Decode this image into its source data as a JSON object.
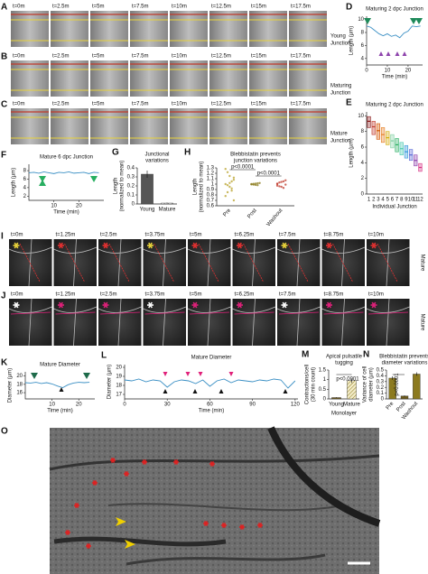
{
  "panels": {
    "A": {
      "label": "A",
      "times": [
        "t=0m",
        "t=2.5m",
        "t=5m",
        "t=7.5m",
        "t=10m",
        "t=12.5m",
        "t=15m",
        "t=17.5m"
      ],
      "caption": [
        "Young",
        "Junction"
      ]
    },
    "B": {
      "label": "B",
      "times": [
        "t=0m",
        "t=2.5m",
        "t=5m",
        "t=7.5m",
        "t=10m",
        "t=12.5m",
        "t=15m",
        "t=17.5m"
      ],
      "caption": [
        "Maturing",
        "Junction"
      ]
    },
    "C": {
      "label": "C",
      "times": [
        "t=0m",
        "t=2.5m",
        "t=5m",
        "t=7.5m",
        "t=10m",
        "t=12.5m",
        "t=15m",
        "t=17.5m"
      ],
      "caption": [
        "Mature",
        "Junction"
      ]
    },
    "I": {
      "label": "I",
      "times": [
        "t=0m",
        "t=1.25m",
        "t=2.5m",
        "t=3.75m",
        "t=5m",
        "t=6.25m",
        "t=7.5m",
        "t=8.75m",
        "t=10m"
      ],
      "side": "Mature"
    },
    "J": {
      "label": "J",
      "times": [
        "t=0m",
        "t=1.25m",
        "t=2.5m",
        "t=3.75m",
        "t=5m",
        "t=6.25m",
        "t=7.5m",
        "t=8.75m",
        "t=10m"
      ],
      "side": "Mature"
    },
    "O": {
      "label": "O"
    }
  },
  "chart_data": [
    {
      "type": "line",
      "label": "D",
      "title": [
        "Maturing 2 dpc Junction"
      ],
      "x_label": "Time (min)",
      "y_label": "Length (µm)",
      "color": "#3a8fc4",
      "x": [
        0,
        2,
        4,
        6,
        8,
        10,
        12,
        14,
        16,
        18,
        20,
        22,
        24,
        26
      ],
      "values": [
        9,
        8.8,
        8.3,
        7.8,
        7.5,
        7.8,
        7.4,
        7.6,
        7.2,
        7.9,
        8.2,
        9,
        8.9,
        9
      ],
      "xlim": [
        0,
        27
      ],
      "ylim": [
        3,
        10.5
      ],
      "xticks": [
        0,
        10,
        20
      ],
      "yticks": [
        4,
        6,
        8,
        10
      ]
    },
    {
      "type": "box",
      "label": "E",
      "title": [
        "Maturing 2 dpc Junction"
      ],
      "x_label": "Individual Junction",
      "y_label": "Length (µm)",
      "categories": [
        "1",
        "2",
        "3",
        "4",
        "5",
        "6",
        "7",
        "8",
        "9",
        "10",
        "11",
        "12"
      ],
      "values": [
        9.3,
        8.6,
        8.1,
        7.6,
        7.2,
        6.8,
        6.3,
        5.8,
        5.4,
        5.0,
        4.3,
        3.4
      ],
      "low": [
        8.5,
        7.6,
        7.0,
        6.6,
        6.3,
        5.9,
        5.4,
        5.0,
        4.6,
        4.3,
        3.6,
        2.9
      ],
      "high": [
        9.9,
        9.3,
        9.0,
        8.5,
        8.0,
        7.6,
        7.1,
        6.6,
        6.2,
        5.7,
        5.0,
        3.9
      ],
      "colors": [
        "#8b1a1a",
        "#c0392b",
        "#d35400",
        "#e67e22",
        "#d4ac0d",
        "#7dcea0",
        "#27ae60",
        "#48c9b0",
        "#3498db",
        "#5b6bd6",
        "#8e44ad",
        "#d63384"
      ],
      "ylim": [
        0,
        10.5
      ],
      "yticks": [
        0,
        2,
        4,
        6,
        8,
        10
      ]
    },
    {
      "type": "line",
      "label": "F",
      "title": [
        "Mature 6 dpc Junction"
      ],
      "x_label": "Time (min)",
      "y_label": "Length (µm)",
      "color": "#3a8fc4",
      "x": [
        0,
        2,
        4,
        6,
        8,
        10,
        12,
        14,
        16,
        18,
        20,
        22,
        24,
        26,
        28
      ],
      "values": [
        7.5,
        7.6,
        7.4,
        7.7,
        7.5,
        7.3,
        7.6,
        7.5,
        7.7,
        7.4,
        7.5,
        7.6,
        7.3,
        7.6,
        7.5
      ],
      "xlim": [
        0,
        30
      ],
      "ylim": [
        1,
        9.5
      ],
      "xticks": [
        10,
        20
      ],
      "yticks": [
        2,
        4,
        6,
        8
      ]
    },
    {
      "type": "bar",
      "label": "G",
      "title": [
        "Junctional",
        "variations"
      ],
      "y_label": [
        "Length",
        "(normalized to mean)"
      ],
      "categories": [
        "Young",
        "Mature"
      ],
      "values": [
        0.33,
        0.01
      ],
      "errors": [
        0.04,
        0.005
      ],
      "colors": [
        "#555555",
        "hatch-gray"
      ],
      "ylim": [
        0,
        0.4
      ],
      "yticks": [
        0,
        0.1,
        0.2,
        0.3,
        0.4
      ]
    },
    {
      "type": "strip",
      "label": "H",
      "title": [
        "Blebbistatin prevents",
        "junction variations"
      ],
      "y_label": [
        "Length",
        "(normalized to mean)"
      ],
      "categories": [
        "Pre",
        "Post",
        "Washout"
      ],
      "colors": [
        "#b8a22a",
        "#8a7a1a",
        "#c0392b"
      ],
      "points": [
        [
          1.0,
          0.85,
          1.15,
          0.92,
          1.08,
          0.78,
          1.22,
          0.95,
          1.05,
          0.7,
          1.28,
          0.98,
          1.02,
          0.88,
          1.12
        ],
        [
          1.0,
          0.99,
          1.01,
          0.98,
          1.02,
          0.995,
          1.005,
          0.985,
          1.015
        ],
        [
          1.0,
          0.96,
          1.04,
          0.93,
          1.07,
          0.97,
          1.03,
          0.95,
          1.05,
          0.99,
          1.01
        ]
      ],
      "annotations": [
        "p<0.0001",
        "p<0.0001"
      ],
      "ylim": [
        0.6,
        1.3
      ],
      "yticks": [
        0.6,
        0.7,
        0.8,
        0.9,
        1,
        1.1,
        1.2,
        1.3
      ]
    },
    {
      "type": "line",
      "label": "K",
      "title": [
        "Mature Diameter"
      ],
      "x_label": "Time (min)",
      "y_label": "Diameter (µm)",
      "color": "#3a8fc4",
      "x": [
        0,
        2,
        4,
        6,
        8,
        10,
        12,
        14,
        16,
        18,
        20,
        22,
        24
      ],
      "values": [
        18.4,
        18.3,
        18.5,
        18.2,
        18.4,
        18.1,
        17.6,
        17.2,
        17.9,
        18.3,
        18.5,
        18.4,
        18.5
      ],
      "xlim": [
        0,
        26
      ],
      "ylim": [
        14.5,
        21
      ],
      "xticks": [
        10,
        20
      ],
      "yticks": [
        16,
        18,
        20
      ]
    },
    {
      "type": "line",
      "label": "L",
      "title": [
        "Mature Diameter"
      ],
      "x_label": "Time (min)",
      "y_label": "Diameter (µm)",
      "color": "#3a8fc4",
      "x": [
        0,
        5,
        10,
        15,
        20,
        25,
        30,
        35,
        40,
        45,
        50,
        55,
        60,
        65,
        70,
        75,
        80,
        85,
        90,
        95,
        100,
        105,
        110,
        115,
        120
      ],
      "values": [
        18.6,
        18.5,
        18.7,
        18.4,
        18.6,
        18.5,
        17.8,
        18.4,
        18.6,
        18.5,
        18.2,
        18.6,
        17.9,
        18.5,
        18.7,
        18.3,
        18.6,
        18.5,
        18.4,
        18.6,
        18.5,
        18.7,
        18.6,
        17.7,
        18.5
      ],
      "xlim": [
        0,
        122
      ],
      "ylim": [
        16.5,
        20.3
      ],
      "xticks": [
        0,
        30,
        60,
        90,
        120
      ],
      "yticks": [
        17,
        18,
        19,
        20
      ]
    },
    {
      "type": "bar",
      "label": "M",
      "title": [
        "Apical pulsatile",
        "tugging"
      ],
      "x_label": "Monolayer",
      "y_label": [
        "Contractions/cell",
        "(30 min count)"
      ],
      "categories": [
        "Young",
        "Mature"
      ],
      "values": [
        0.07,
        0.95
      ],
      "errors": [
        0.02,
        0.12
      ],
      "colors": [
        "#6b5a1e",
        "hatch-olive"
      ],
      "annotations": [
        "p<0.0001"
      ],
      "ylim": [
        0,
        1.5
      ],
      "yticks": [
        0,
        0.5,
        1,
        1.5
      ]
    },
    {
      "type": "bar",
      "label": "N",
      "title": [
        "Blebbistatin prevents",
        "diameter variations"
      ],
      "y_label": [
        "Variance of cell",
        "diameter (µm)"
      ],
      "categories": [
        "Pre",
        "Post",
        "Washout"
      ],
      "values": [
        0.36,
        0.05,
        0.43
      ],
      "errors": [
        0.03,
        0.01,
        0.03
      ],
      "colors": [
        "#8c7a1f",
        "#6b5a1e",
        "#8c7a1f"
      ],
      "annotations": [
        "p<0.0001"
      ],
      "ylim": [
        0,
        0.5
      ],
      "yticks": [
        0,
        0.1,
        0.2,
        0.3,
        0.4,
        0.5
      ]
    }
  ]
}
